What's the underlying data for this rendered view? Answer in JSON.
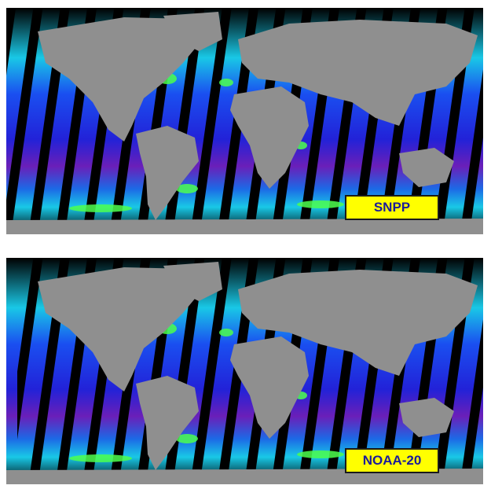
{
  "panels": [
    {
      "satellite": "SNPP"
    },
    {
      "satellite": "NOAA-20"
    }
  ],
  "colors": {
    "land": "#8f8f8f",
    "no_data": "#000000",
    "ocean_low": "#6a1fb8",
    "ocean_mid": "#1c2ad6",
    "ocean_high": "#19c8e6",
    "coastal_bloom": "#4dff4d",
    "label_background": "#ffff00",
    "label_text": "#1b1b9a"
  }
}
